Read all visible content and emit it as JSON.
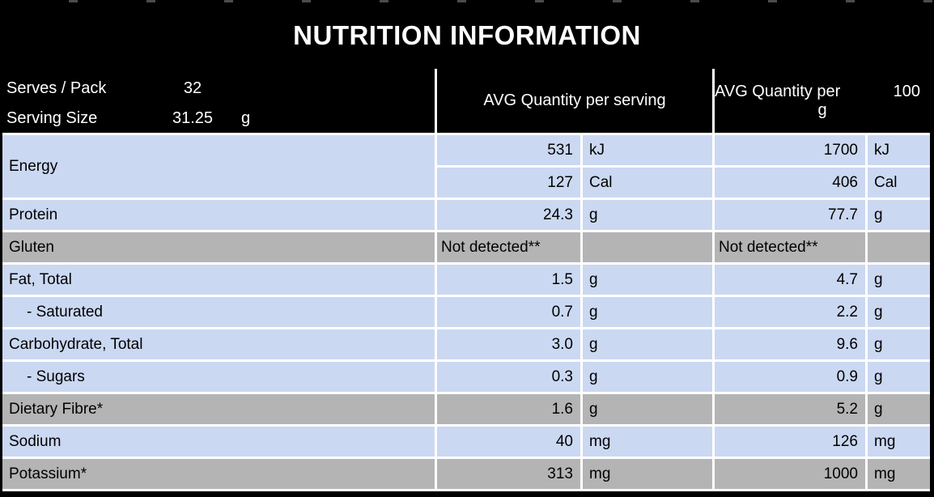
{
  "title": "NUTRITION INFORMATION",
  "pack_info": {
    "serves_label": "Serves / Pack",
    "serves_value": "32",
    "serving_size_label": "Serving Size",
    "serving_size_value": "31.25",
    "serving_size_unit": "g"
  },
  "columns": {
    "per_serving": "AVG Quantity per serving",
    "per_100_prefix": "AVG Quantity per",
    "per_100_amount": "100",
    "per_100_unit": "g"
  },
  "colors": {
    "row_blue": "#cbd8f2",
    "row_gray": "#b4b4b4",
    "header_bg": "#000000",
    "header_text": "#ffffff",
    "grid_line": "#ffffff"
  },
  "energy": {
    "label": "Energy",
    "entries": [
      {
        "serving_value": "531",
        "serving_unit": "kJ",
        "per100_value": "1700",
        "per100_unit": "kJ"
      },
      {
        "serving_value": "127",
        "serving_unit": "Cal",
        "per100_value": "406",
        "per100_unit": "Cal"
      }
    ]
  },
  "rows": [
    {
      "label": "Protein",
      "serving_value": "24.3",
      "serving_unit": "g",
      "per100_value": "77.7",
      "per100_unit": "g"
    },
    {
      "label": "Gluten",
      "serving_value": "Not detected**",
      "serving_unit": "",
      "per100_value": "Not detected**",
      "per100_unit": ""
    },
    {
      "label": "Fat, Total",
      "serving_value": "1.5",
      "serving_unit": "g",
      "per100_value": "4.7",
      "per100_unit": "g"
    },
    {
      "label": "- Saturated",
      "serving_value": "0.7",
      "serving_unit": "g",
      "per100_value": "2.2",
      "per100_unit": "g"
    },
    {
      "label": "Carbohydrate, Total",
      "serving_value": "3.0",
      "serving_unit": "g",
      "per100_value": "9.6",
      "per100_unit": "g"
    },
    {
      "label": "- Sugars",
      "serving_value": "0.3",
      "serving_unit": "g",
      "per100_value": "0.9",
      "per100_unit": "g"
    },
    {
      "label": "Dietary Fibre*",
      "serving_value": "1.6",
      "serving_unit": "g",
      "per100_value": "5.2",
      "per100_unit": "g"
    },
    {
      "label": "Sodium",
      "serving_value": "40",
      "serving_unit": "mg",
      "per100_value": "126",
      "per100_unit": "mg"
    },
    {
      "label": "Potassium*",
      "serving_value": "313",
      "serving_unit": "mg",
      "per100_value": "1000",
      "per100_unit": "mg"
    }
  ]
}
